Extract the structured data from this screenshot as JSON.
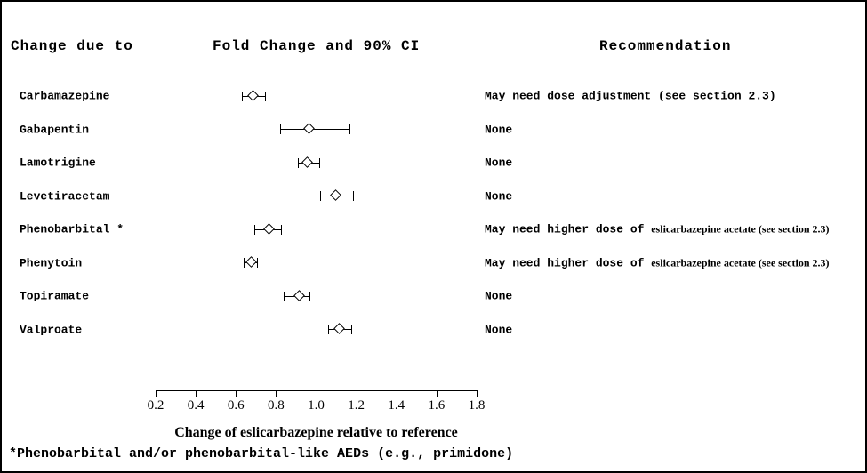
{
  "header": {
    "change_due_to": "Change due to",
    "fold_change": "Fold Change and 90% CI",
    "recommendation": "Recommendation"
  },
  "chart_data": {
    "type": "forest",
    "title": "Fold Change and 90% CI",
    "xlabel": "Change of eslicarbazepine relative to reference",
    "x_range": [
      0.2,
      1.8
    ],
    "x_ticks": [
      0.2,
      0.4,
      0.6,
      0.8,
      1.0,
      1.2,
      1.4,
      1.6,
      1.8
    ],
    "reference_line": 1.0,
    "grid": false,
    "rows": [
      {
        "drug": "Carbamazepine",
        "estimate": 0.69,
        "ci_low": 0.63,
        "ci_high": 0.75,
        "rec_main": "May need dose adjustment  (see section 2.3)",
        "rec_serif": ""
      },
      {
        "drug": "Gabapentin",
        "estimate": 0.97,
        "ci_low": 0.82,
        "ci_high": 1.17,
        "rec_main": "None",
        "rec_serif": ""
      },
      {
        "drug": "Lamotrigine",
        "estimate": 0.96,
        "ci_low": 0.91,
        "ci_high": 1.02,
        "rec_main": "None",
        "rec_serif": ""
      },
      {
        "drug": "Levetiracetam",
        "estimate": 1.1,
        "ci_low": 1.02,
        "ci_high": 1.19,
        "rec_main": "None",
        "rec_serif": ""
      },
      {
        "drug": "Phenobarbital *",
        "estimate": 0.77,
        "ci_low": 0.69,
        "ci_high": 0.83,
        "rec_main": "May need higher dose of ",
        "rec_serif": "eslicarbazepine acetate (see section 2.3)"
      },
      {
        "drug": "Phenytoin",
        "estimate": 0.68,
        "ci_low": 0.64,
        "ci_high": 0.71,
        "rec_main": "May need higher dose of ",
        "rec_serif": "eslicarbazepine acetate (see section 2.3)"
      },
      {
        "drug": "Topiramate",
        "estimate": 0.92,
        "ci_low": 0.84,
        "ci_high": 0.97,
        "rec_main": "None",
        "rec_serif": ""
      },
      {
        "drug": "Valproate",
        "estimate": 1.12,
        "ci_low": 1.06,
        "ci_high": 1.18,
        "rec_main": "None",
        "rec_serif": ""
      }
    ]
  },
  "footnote": "*Phenobarbital and/or phenobarbital-like AEDs (e.g., primidone)"
}
